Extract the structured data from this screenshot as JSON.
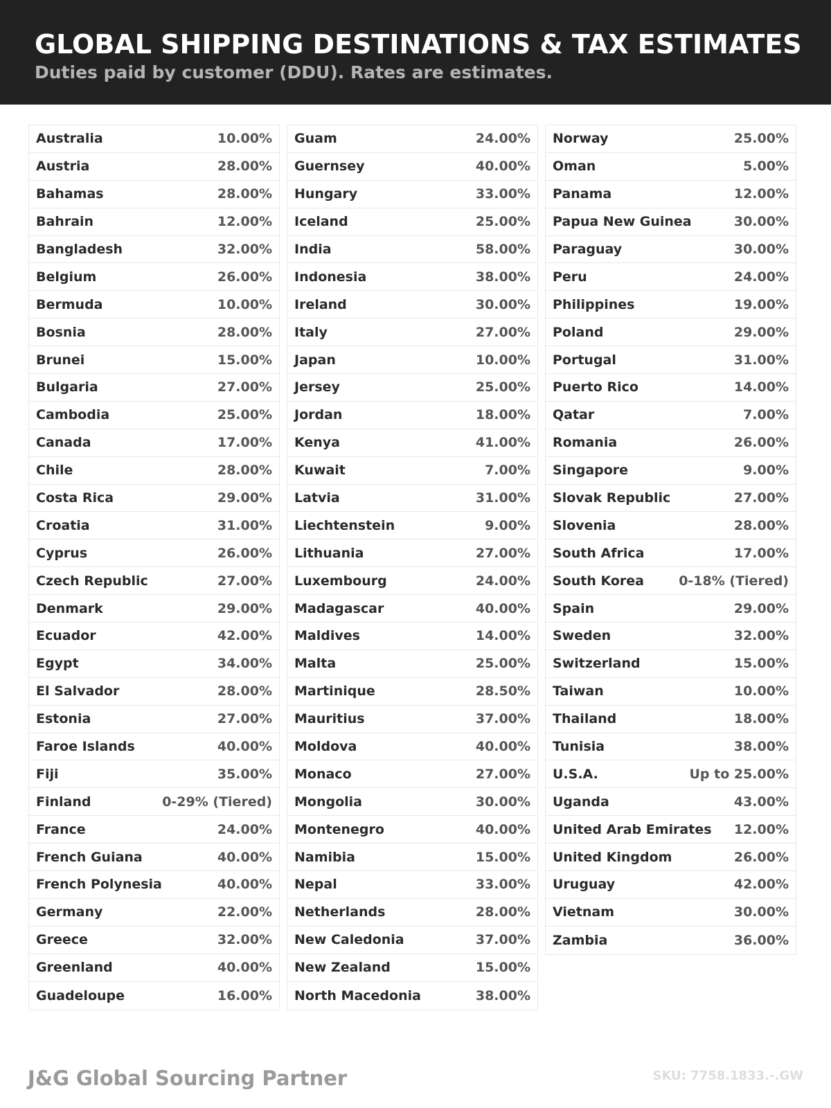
{
  "header": {
    "title": "GLOBAL SHIPPING DESTINATIONS & TAX ESTIMATES",
    "subtitle": "Duties paid by customer (DDU). Rates are estimates."
  },
  "columns": [
    [
      [
        "Australia",
        "10.00%"
      ],
      [
        "Austria",
        "28.00%"
      ],
      [
        "Bahamas",
        "28.00%"
      ],
      [
        "Bahrain",
        "12.00%"
      ],
      [
        "Bangladesh",
        "32.00%"
      ],
      [
        "Belgium",
        "26.00%"
      ],
      [
        "Bermuda",
        "10.00%"
      ],
      [
        "Bosnia",
        "28.00%"
      ],
      [
        "Brunei",
        "15.00%"
      ],
      [
        "Bulgaria",
        "27.00%"
      ],
      [
        "Cambodia",
        "25.00%"
      ],
      [
        "Canada",
        "17.00%"
      ],
      [
        "Chile",
        "28.00%"
      ],
      [
        "Costa Rica",
        "29.00%"
      ],
      [
        "Croatia",
        "31.00%"
      ],
      [
        "Cyprus",
        "26.00%"
      ],
      [
        "Czech Republic",
        "27.00%"
      ],
      [
        "Denmark",
        "29.00%"
      ],
      [
        "Ecuador",
        "42.00%"
      ],
      [
        "Egypt",
        "34.00%"
      ],
      [
        "El Salvador",
        "28.00%"
      ],
      [
        "Estonia",
        "27.00%"
      ],
      [
        "Faroe Islands",
        "40.00%"
      ],
      [
        "Fiji",
        "35.00%"
      ],
      [
        "Finland",
        "0-29% (Tiered)"
      ],
      [
        "France",
        "24.00%"
      ],
      [
        "French Guiana",
        "40.00%"
      ],
      [
        "French Polynesia",
        "40.00%"
      ],
      [
        "Germany",
        "22.00%"
      ],
      [
        "Greece",
        "32.00%"
      ],
      [
        "Greenland",
        "40.00%"
      ],
      [
        "Guadeloupe",
        "16.00%"
      ]
    ],
    [
      [
        "Guam",
        "24.00%"
      ],
      [
        "Guernsey",
        "40.00%"
      ],
      [
        "Hungary",
        "33.00%"
      ],
      [
        "Iceland",
        "25.00%"
      ],
      [
        "India",
        "58.00%"
      ],
      [
        "Indonesia",
        "38.00%"
      ],
      [
        "Ireland",
        "30.00%"
      ],
      [
        "Italy",
        "27.00%"
      ],
      [
        "Japan",
        "10.00%"
      ],
      [
        "Jersey",
        "25.00%"
      ],
      [
        "Jordan",
        "18.00%"
      ],
      [
        "Kenya",
        "41.00%"
      ],
      [
        "Kuwait",
        "7.00%"
      ],
      [
        "Latvia",
        "31.00%"
      ],
      [
        "Liechtenstein",
        "9.00%"
      ],
      [
        "Lithuania",
        "27.00%"
      ],
      [
        "Luxembourg",
        "24.00%"
      ],
      [
        "Madagascar",
        "40.00%"
      ],
      [
        "Maldives",
        "14.00%"
      ],
      [
        "Malta",
        "25.00%"
      ],
      [
        "Martinique",
        "28.50%"
      ],
      [
        "Mauritius",
        "37.00%"
      ],
      [
        "Moldova",
        "40.00%"
      ],
      [
        "Monaco",
        "27.00%"
      ],
      [
        "Mongolia",
        "30.00%"
      ],
      [
        "Montenegro",
        "40.00%"
      ],
      [
        "Namibia",
        "15.00%"
      ],
      [
        "Nepal",
        "33.00%"
      ],
      [
        "Netherlands",
        "28.00%"
      ],
      [
        "New Caledonia",
        "37.00%"
      ],
      [
        "New Zealand",
        "15.00%"
      ],
      [
        "North Macedonia",
        "38.00%"
      ]
    ],
    [
      [
        "Norway",
        "25.00%"
      ],
      [
        "Oman",
        "5.00%"
      ],
      [
        "Panama",
        "12.00%"
      ],
      [
        "Papua New Guinea",
        "30.00%"
      ],
      [
        "Paraguay",
        "30.00%"
      ],
      [
        "Peru",
        "24.00%"
      ],
      [
        "Philippines",
        "19.00%"
      ],
      [
        "Poland",
        "29.00%"
      ],
      [
        "Portugal",
        "31.00%"
      ],
      [
        "Puerto Rico",
        "14.00%"
      ],
      [
        "Qatar",
        "7.00%"
      ],
      [
        "Romania",
        "26.00%"
      ],
      [
        "Singapore",
        "9.00%"
      ],
      [
        "Slovak Republic",
        "27.00%"
      ],
      [
        "Slovenia",
        "28.00%"
      ],
      [
        "South Africa",
        "17.00%"
      ],
      [
        "South Korea",
        "0-18% (Tiered)"
      ],
      [
        "Spain",
        "29.00%"
      ],
      [
        "Sweden",
        "32.00%"
      ],
      [
        "Switzerland",
        "15.00%"
      ],
      [
        "Taiwan",
        "10.00%"
      ],
      [
        "Thailand",
        "18.00%"
      ],
      [
        "Tunisia",
        "38.00%"
      ],
      [
        "U.S.A.",
        "Up to 25.00%"
      ],
      [
        "Uganda",
        "43.00%"
      ],
      [
        "United Arab Emirates",
        "12.00%"
      ],
      [
        "United Kingdom",
        "26.00%"
      ],
      [
        "Uruguay",
        "42.00%"
      ],
      [
        "Vietnam",
        "30.00%"
      ],
      [
        "Zambia",
        "36.00%"
      ]
    ]
  ],
  "footer": {
    "brand": "J&G Global Sourcing Partner",
    "sku": "SKU: 7758.1833.-.GW"
  }
}
